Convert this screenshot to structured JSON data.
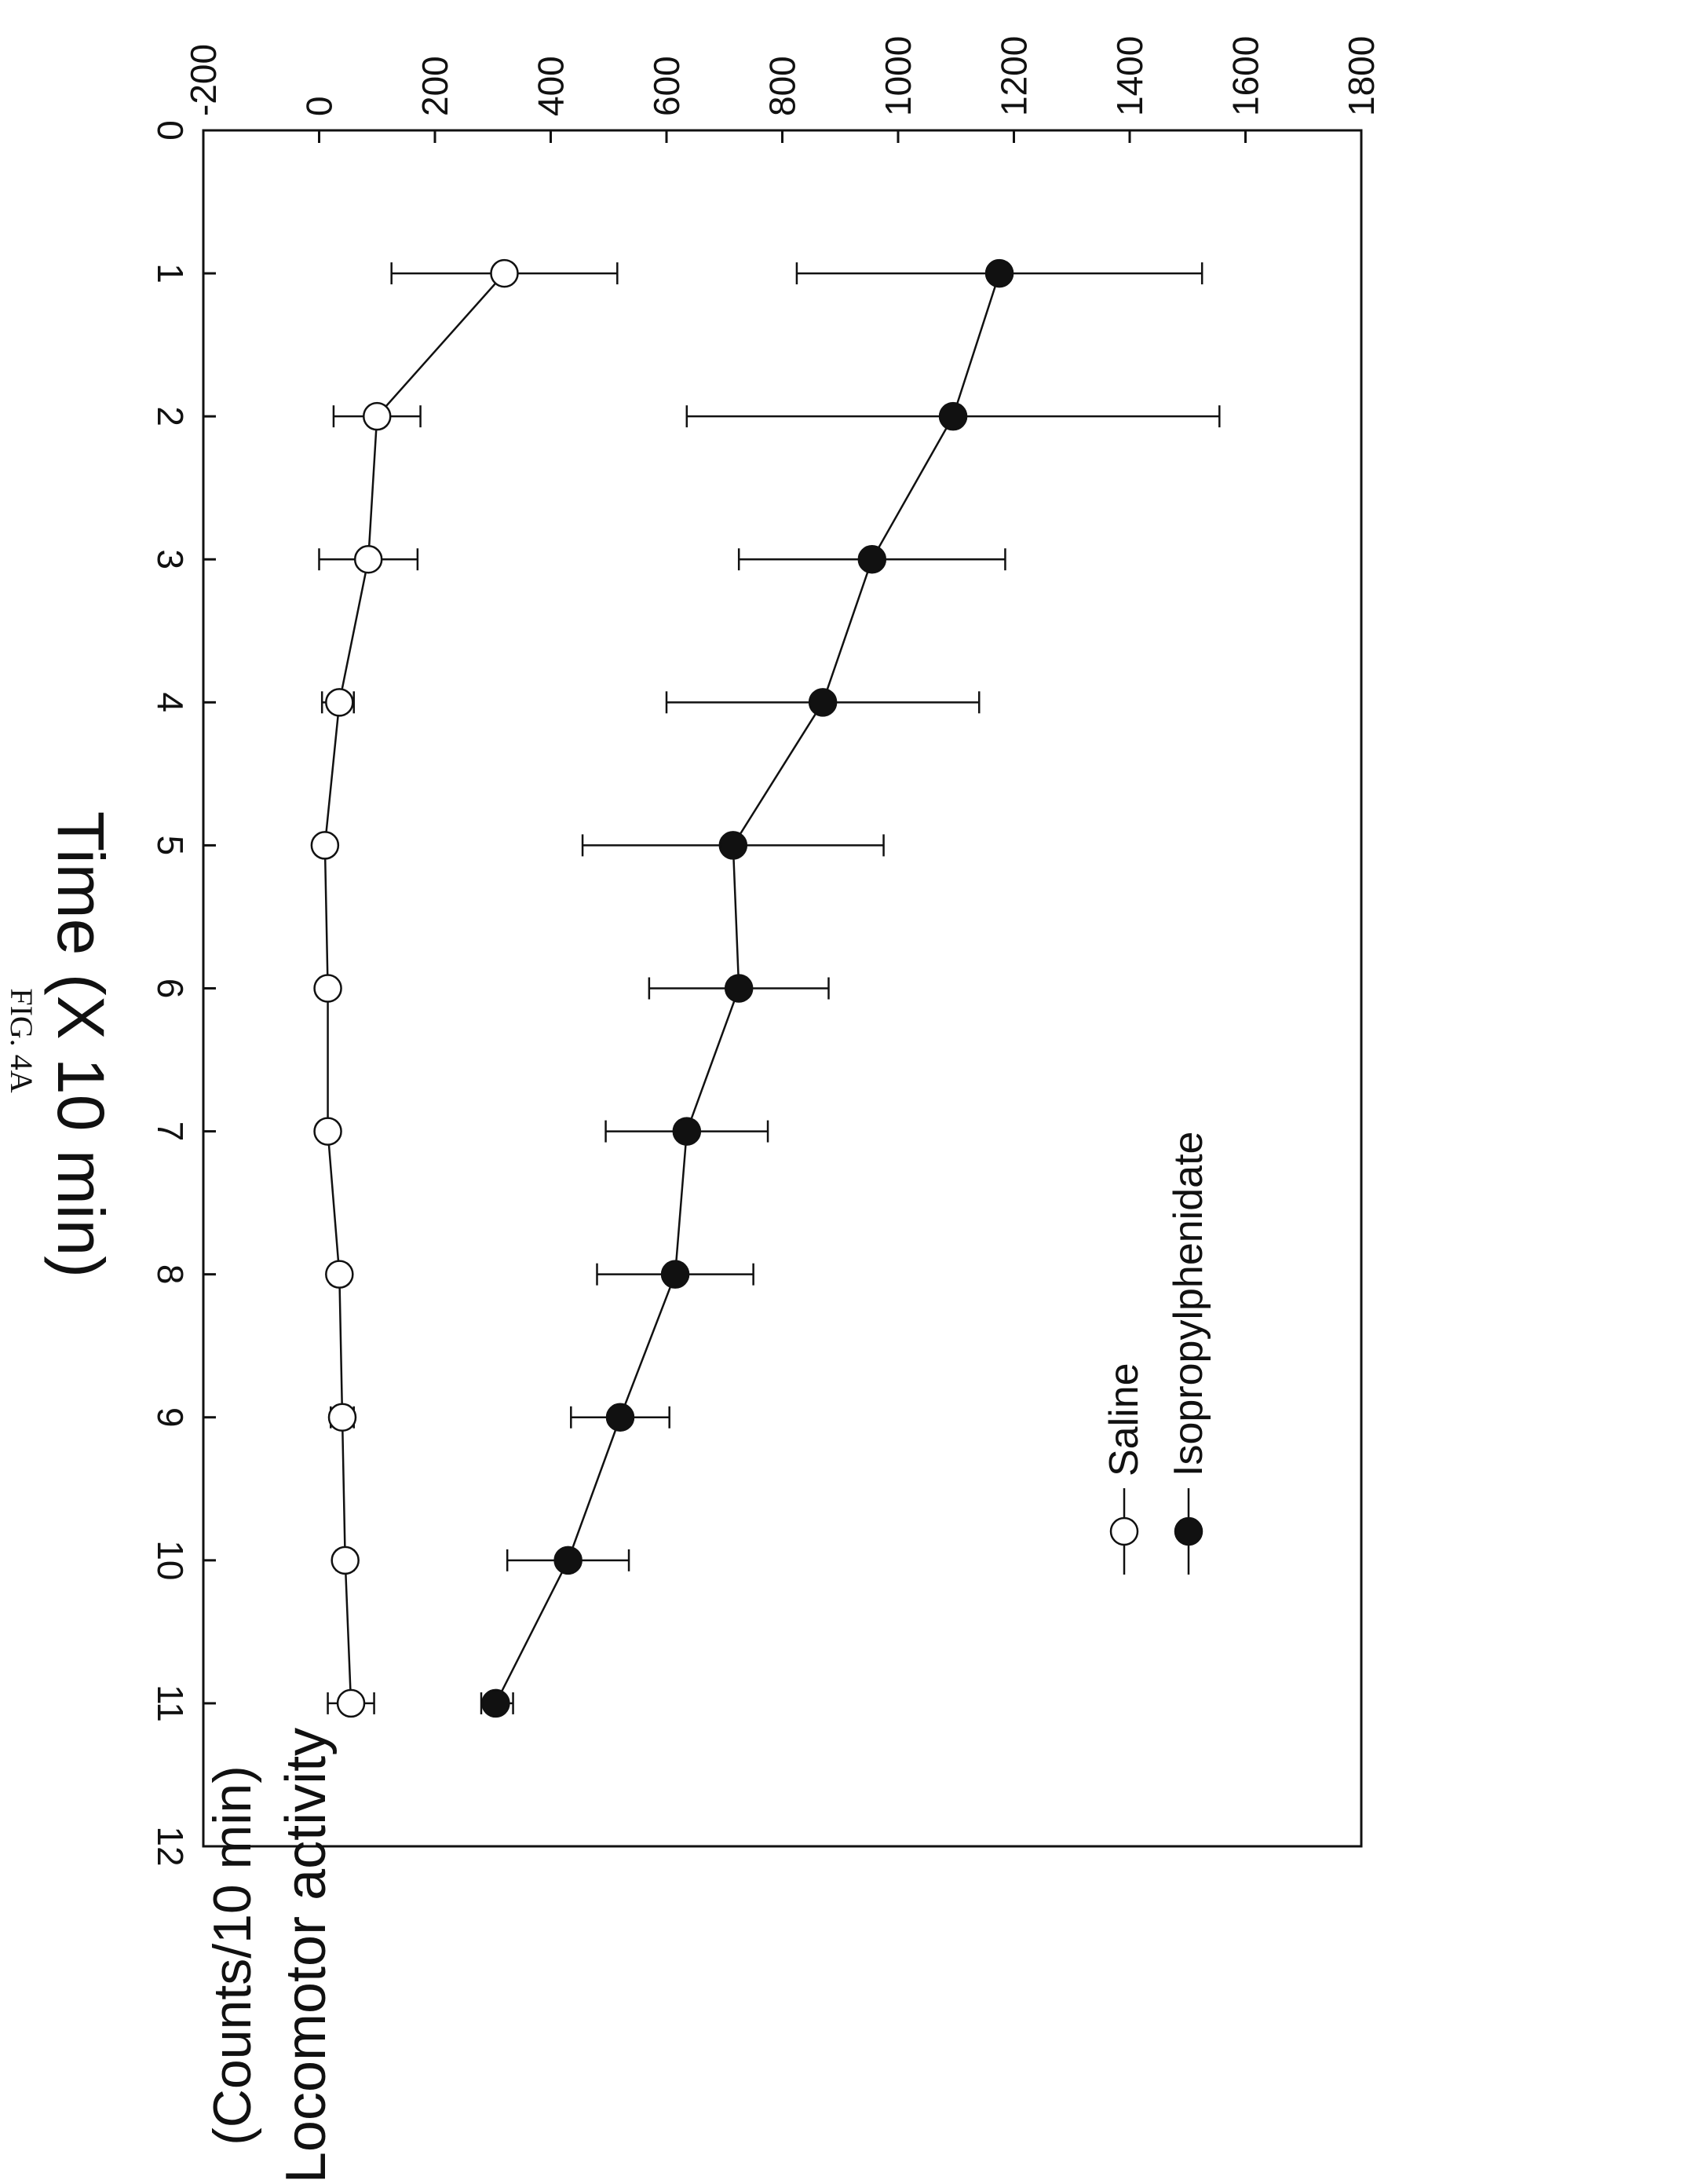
{
  "figure_label": "FIG. 4A",
  "chart_data": {
    "type": "line",
    "xlabel": "Time (X 10 min)",
    "ylabel_line1": "Locomotor activity",
    "ylabel_line2": "(Counts/10 min)",
    "xlim": [
      0,
      12
    ],
    "ylim": [
      -200,
      1800
    ],
    "x_ticks": [
      0,
      1,
      2,
      3,
      4,
      5,
      6,
      7,
      8,
      9,
      10,
      11,
      12
    ],
    "y_ticks": [
      -200,
      0,
      200,
      400,
      600,
      800,
      1000,
      1200,
      1400,
      1600,
      1800
    ],
    "grid": false,
    "legend_position": "top-left",
    "x": [
      1,
      2,
      3,
      4,
      5,
      6,
      7,
      8,
      9,
      10,
      11
    ],
    "series": [
      {
        "name": "Isopropylphenidate",
        "marker": "filled-circle",
        "color": "#111111",
        "values": [
          1175,
          1095,
          955,
          870,
          715,
          725,
          635,
          615,
          520,
          430,
          305
        ],
        "err_low": [
          825,
          635,
          725,
          600,
          455,
          570,
          495,
          480,
          435,
          325,
          280
        ],
        "err_high": [
          1525,
          1555,
          1185,
          1140,
          975,
          880,
          775,
          750,
          605,
          535,
          335
        ]
      },
      {
        "name": "Saline",
        "marker": "open-circle",
        "color": "#ffffff",
        "values": [
          320,
          100,
          85,
          35,
          10,
          15,
          15,
          35,
          40,
          45,
          55
        ],
        "err_low": [
          125,
          25,
          0,
          5,
          5,
          5,
          5,
          20,
          20,
          30,
          15
        ],
        "err_high": [
          515,
          175,
          170,
          60,
          15,
          25,
          25,
          50,
          60,
          60,
          95
        ]
      }
    ]
  }
}
